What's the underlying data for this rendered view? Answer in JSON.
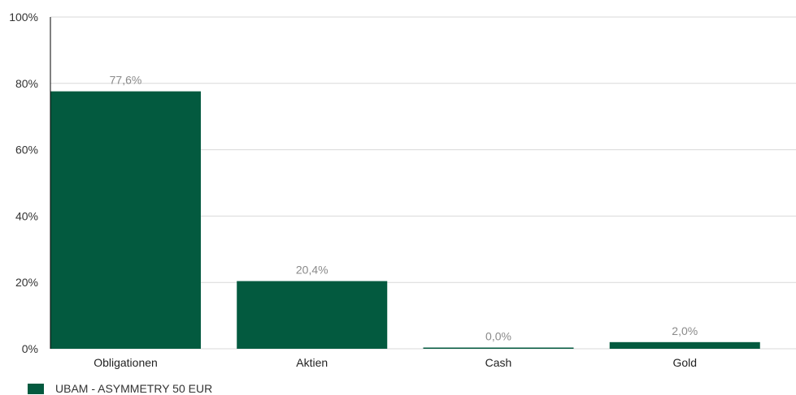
{
  "chart_data": {
    "type": "bar",
    "categories": [
      "Obligationen",
      "Aktien",
      "Cash",
      "Gold"
    ],
    "series": [
      {
        "name": "UBAM - ASYMMETRY 50 EUR",
        "values": [
          77.6,
          20.4,
          0.0,
          2.0
        ]
      }
    ],
    "data_labels": [
      "77,6%",
      "20,4%",
      "0,0%",
      "2,0%"
    ],
    "yticks": [
      0,
      20,
      40,
      60,
      80,
      100
    ],
    "ytick_labels": [
      "0%",
      "20%",
      "40%",
      "60%",
      "80%",
      "100%"
    ],
    "ylim": [
      0,
      100
    ],
    "grid": true,
    "legend_position": "bottom-left",
    "colors": {
      "bar": "#035a3f",
      "grid": "#d9d9d9",
      "axis": "#000000",
      "data_label": "#8a8a8a"
    }
  }
}
